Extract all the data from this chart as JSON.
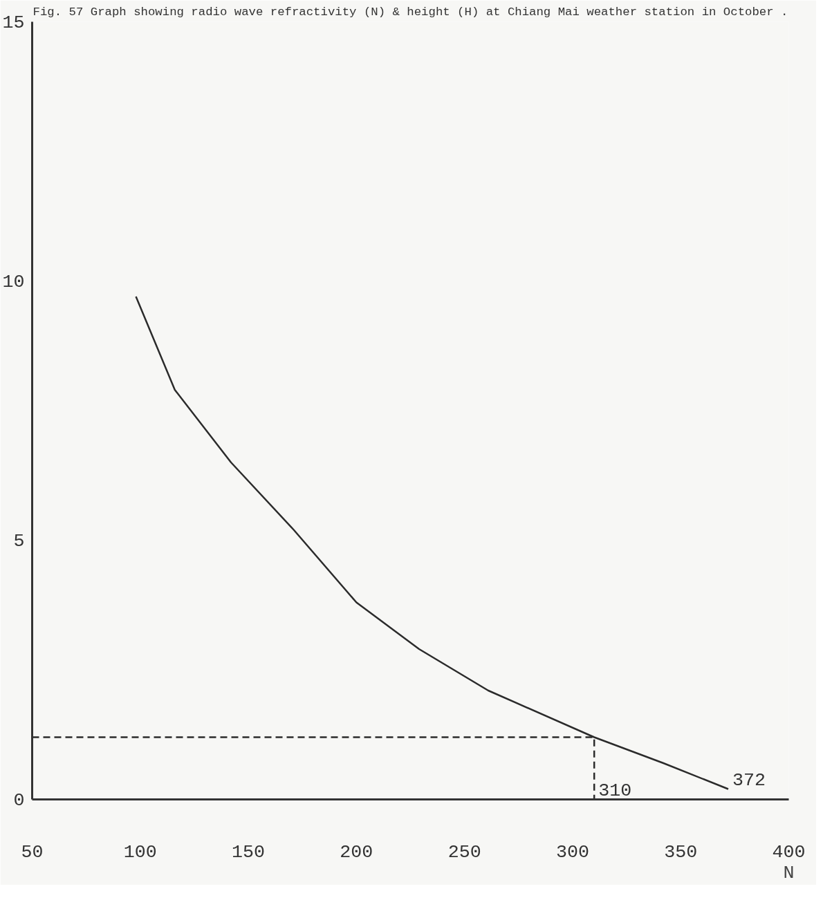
{
  "chart_data": {
    "type": "line",
    "title": "Fig. 57 Graph showing radio wave refractivity (N) & height (H) at Chiang Mai weather station in October .",
    "xlabel": "N",
    "xlim": [
      50,
      400
    ],
    "xticks": [
      50,
      100,
      150,
      200,
      250,
      300,
      350,
      400
    ],
    "ylim": [
      0,
      15
    ],
    "yticks": [
      0,
      5,
      10,
      15
    ],
    "grid": false,
    "marker": "none",
    "series": [
      {
        "color": "#2b2b2b",
        "line_style": "solid",
        "x": [
          98,
          116,
          142,
          171,
          200,
          229,
          261,
          310,
          342,
          372
        ],
        "values": [
          9.7,
          7.9,
          6.5,
          5.2,
          3.8,
          2.9,
          2.1,
          1.2,
          0.7,
          0.2
        ]
      },
      {
        "color": "#2b2b2b",
        "line_style": "dashed",
        "x": [
          50,
          310,
          310
        ],
        "values": [
          1.2,
          1.2,
          0
        ]
      }
    ],
    "annotations": [
      {
        "text": "310",
        "x": 310,
        "y": 0
      },
      {
        "text": "372",
        "x": 372,
        "y": 0.2
      }
    ]
  }
}
